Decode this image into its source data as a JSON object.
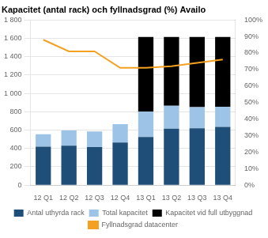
{
  "chart_data": {
    "type": "bar",
    "title": "Kapacitet (antal rack) och fyllnadsgrad (%) Availo",
    "categories": [
      "12 Q1",
      "12 Q2",
      "12 Q3",
      "12 Q4",
      "13 Q1",
      "13 Q2",
      "13 Q3",
      "13 Q4"
    ],
    "stacked": true,
    "grid": true,
    "legend": "bottom",
    "series": [
      {
        "name": "Antal uthyrda rack",
        "color": "#1f4e79",
        "values": [
          420,
          430,
          415,
          465,
          525,
          615,
          620,
          635
        ]
      },
      {
        "name": "Total kapacitet",
        "color": "#9dc3e6",
        "values": [
          135,
          165,
          170,
          200,
          275,
          250,
          230,
          220
        ]
      },
      {
        "name": "Kapacitet vid full utbyggnad",
        "color": "#000000",
        "values": [
          0,
          0,
          0,
          0,
          815,
          750,
          765,
          760
        ]
      },
      {
        "name": "Fyllnadsgrad datacenter",
        "type": "line",
        "axis": "y2",
        "color": "#f4a020",
        "values": [
          88,
          81,
          81,
          71,
          71,
          72,
          74,
          76
        ]
      }
    ],
    "ylim": [
      0,
      1800
    ],
    "yticks": [
      0,
      200,
      400,
      600,
      800,
      {
        "value": 1000,
        "label": "1 000"
      },
      {
        "value": 1200,
        "label": "1 200"
      },
      {
        "value": 1400,
        "label": "1 400"
      },
      {
        "value": 1600,
        "label": "1 600"
      },
      {
        "value": 1800,
        "label": "1 800"
      }
    ],
    "y2lim": [
      0,
      100
    ],
    "y2ticks": [
      {
        "value": 0,
        "label": "0%"
      },
      {
        "value": 10,
        "label": "10%"
      },
      {
        "value": 20,
        "label": "20%"
      },
      {
        "value": 30,
        "label": "30%"
      },
      {
        "value": 40,
        "label": "40%"
      },
      {
        "value": 50,
        "label": "50%"
      },
      {
        "value": 60,
        "label": "60%"
      },
      {
        "value": 70,
        "label": "70%"
      },
      {
        "value": 80,
        "label": "80%"
      },
      {
        "value": 90,
        "label": "90%"
      },
      {
        "value": 100,
        "label": "100%"
      }
    ]
  }
}
